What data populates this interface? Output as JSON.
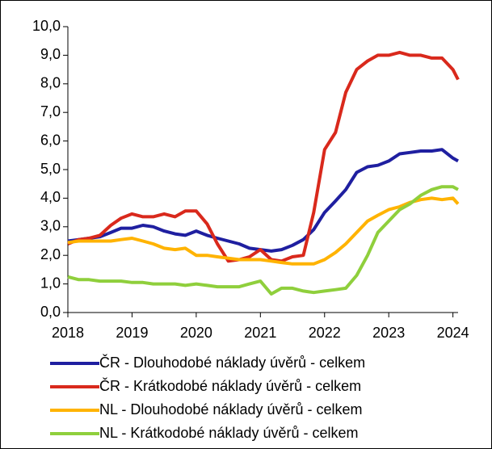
{
  "chart_data": {
    "type": "line",
    "x": [
      2018,
      2018.17,
      2018.33,
      2018.5,
      2018.67,
      2018.83,
      2019,
      2019.17,
      2019.33,
      2019.5,
      2019.67,
      2019.83,
      2020,
      2020.17,
      2020.33,
      2020.5,
      2020.67,
      2020.83,
      2021,
      2021.17,
      2021.33,
      2021.5,
      2021.67,
      2021.83,
      2022,
      2022.17,
      2022.33,
      2022.5,
      2022.67,
      2022.83,
      2023,
      2023.17,
      2023.33,
      2023.5,
      2023.67,
      2023.83,
      2024,
      2024.08
    ],
    "series": [
      {
        "name": "ČR - Dlouhodobé náklady úvěrů - celkem",
        "color": "#1f1fa0",
        "values": [
          2.5,
          2.55,
          2.6,
          2.65,
          2.8,
          2.95,
          2.95,
          3.05,
          3.0,
          2.85,
          2.75,
          2.7,
          2.85,
          2.7,
          2.6,
          2.5,
          2.4,
          2.25,
          2.2,
          2.15,
          2.2,
          2.35,
          2.55,
          2.9,
          3.5,
          3.9,
          4.3,
          4.9,
          5.1,
          5.15,
          5.3,
          5.55,
          5.6,
          5.65,
          5.65,
          5.7,
          5.4,
          5.3
        ]
      },
      {
        "name": "ČR - Krátkodobé náklady úvěrů - celkem",
        "color": "#d9291c",
        "values": [
          2.4,
          2.55,
          2.6,
          2.7,
          3.05,
          3.3,
          3.45,
          3.35,
          3.35,
          3.45,
          3.35,
          3.55,
          3.55,
          3.1,
          2.4,
          1.8,
          1.85,
          1.95,
          2.2,
          1.85,
          1.8,
          1.95,
          2.0,
          3.5,
          5.7,
          6.3,
          7.7,
          8.5,
          8.8,
          9.0,
          9.0,
          9.1,
          9.0,
          9.0,
          8.9,
          8.9,
          8.5,
          8.15
        ]
      },
      {
        "name": "NL - Dlouhodobé náklady úvěrů - celkem",
        "color": "#ffb300",
        "values": [
          2.45,
          2.5,
          2.5,
          2.5,
          2.5,
          2.55,
          2.6,
          2.5,
          2.4,
          2.25,
          2.2,
          2.25,
          2.0,
          2.0,
          1.95,
          1.9,
          1.85,
          1.85,
          1.85,
          1.8,
          1.75,
          1.7,
          1.7,
          1.7,
          1.85,
          2.1,
          2.4,
          2.8,
          3.2,
          3.4,
          3.6,
          3.7,
          3.85,
          3.95,
          4.0,
          3.95,
          4.0,
          3.8
        ]
      },
      {
        "name": "NL - Krátkodobé náklady úvěrů - celkem",
        "color": "#8fcf3c",
        "values": [
          1.25,
          1.15,
          1.15,
          1.1,
          1.1,
          1.1,
          1.05,
          1.05,
          1.0,
          1.0,
          1.0,
          0.95,
          1.0,
          0.95,
          0.9,
          0.9,
          0.9,
          1.0,
          1.1,
          0.65,
          0.85,
          0.85,
          0.75,
          0.7,
          0.75,
          0.8,
          0.85,
          1.3,
          2.0,
          2.8,
          3.2,
          3.6,
          3.8,
          4.1,
          4.3,
          4.4,
          4.4,
          4.3
        ]
      }
    ],
    "xlim": [
      2018,
      2024.08
    ],
    "xticks": [
      2018,
      2019,
      2020,
      2021,
      2022,
      2023,
      2024
    ],
    "ylim": [
      0,
      10
    ],
    "yticks": [
      {
        "value": 0,
        "label": "0,0"
      },
      {
        "value": 1,
        "label": "1,0"
      },
      {
        "value": 2,
        "label": "2,0"
      },
      {
        "value": 3,
        "label": "3,0"
      },
      {
        "value": 4,
        "label": "4,0"
      },
      {
        "value": 5,
        "label": "5,0"
      },
      {
        "value": 6,
        "label": "6,0"
      },
      {
        "value": 7,
        "label": "7,0"
      },
      {
        "value": 8,
        "label": "8,0"
      },
      {
        "value": 9,
        "label": "9,0"
      },
      {
        "value": 10,
        "label": "10,0"
      }
    ]
  }
}
